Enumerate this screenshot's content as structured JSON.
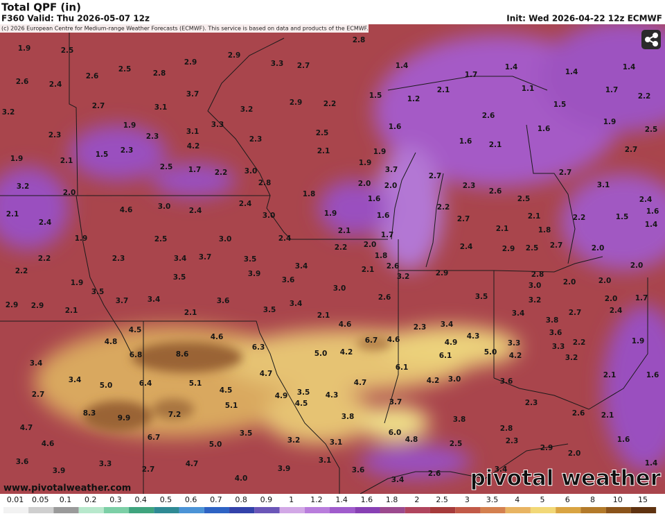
{
  "header": {
    "title": "Total QPF (in)",
    "valid": "F360 Valid: Thu 2026-05-07 12z",
    "init": "Init: Wed 2026-04-22 12z ECMWF",
    "copyright": "(c) 2026 European Centre for Medium-range Weather Forecasts (ECMWF). This service is based on data and products of the ECMWF."
  },
  "map": {
    "labels": [
      "1.9",
      "2.5",
      "2.5",
      "2.8",
      "2.9",
      "2.9",
      "3.3",
      "2.7",
      "2.8",
      "1.4",
      "1.7",
      "1.4",
      "1.4",
      "1.4",
      "2.6",
      "2.4",
      "2.6",
      "3.7",
      "2.1",
      "1.1",
      "1.7",
      "2.2",
      "3.2",
      "2.7",
      "3.1",
      "3.2",
      "2.9",
      "2.2",
      "1.5",
      "1.2",
      "1.5",
      "2.6",
      "1.9",
      "1.9",
      "3.1",
      "3.3",
      "1.6",
      "1.6",
      "2.5",
      "2.3",
      "2.3",
      "2.5",
      "2.3",
      "1.6",
      "2.1",
      "4.2",
      "2.1",
      "1.9",
      "2.7",
      "1.9",
      "2.1",
      "1.5",
      "2.3",
      "2.5",
      "1.7",
      "2.2",
      "3.0",
      "1.9",
      "3.7",
      "2.7",
      "2.7",
      "3.2",
      "2.0",
      "2.8",
      "2.0",
      "2.0",
      "2.3",
      "2.6",
      "3.1",
      "1.8",
      "1.6",
      "2.5",
      "2.4",
      "2.1",
      "4.6",
      "3.0",
      "2.4",
      "2.4",
      "2.2",
      "1.6",
      "3.0",
      "1.9",
      "1.6",
      "2.7",
      "2.1",
      "2.2",
      "1.5",
      "1.4",
      "2.4",
      "1.8",
      "2.1",
      "2.1",
      "1.9",
      "2.5",
      "3.0",
      "2.4",
      "1.7",
      "2.0",
      "2.2",
      "2.4",
      "2.9",
      "2.5",
      "2.7",
      "2.0",
      "2.2",
      "2.3",
      "3.4",
      "3.7",
      "3.5",
      "1.8",
      "3.4",
      "2.6",
      "2.0",
      "2.2",
      "2.1",
      "3.9",
      "3.5",
      "3.2",
      "2.9",
      "2.8",
      "2.0",
      "2.0",
      "1.9",
      "3.6",
      "3.0",
      "3.5",
      "3.0",
      "1.7",
      "3.7",
      "3.4",
      "3.6",
      "2.6",
      "3.5",
      "3.2",
      "2.0",
      "2.9",
      "2.9",
      "3.4",
      "2.1",
      "3.5",
      "2.1",
      "3.4",
      "2.7",
      "2.4",
      "2.1",
      "3.8",
      "4.6",
      "2.3",
      "3.4",
      "4.5",
      "3.6",
      "4.6",
      "4.3",
      "1.9",
      "4.8",
      "6.7",
      "4.6",
      "4.9",
      "3.3",
      "3.3",
      "2.2",
      "6.3",
      "3.4",
      "6.8",
      "8.6",
      "5.0",
      "4.2",
      "6.1",
      "5.0",
      "4.2",
      "3.2",
      "6.1",
      "4.7",
      "2.1",
      "1.6",
      "3.4",
      "5.0",
      "6.4",
      "5.1",
      "4.7",
      "4.2",
      "3.0",
      "3.6",
      "4.5",
      "3.5",
      "4.9",
      "4.3",
      "2.7",
      "3.7",
      "4.5",
      "2.3",
      "5.1",
      "8.3",
      "7.2",
      "3.8",
      "3.8",
      "2.6",
      "2.1",
      "9.9",
      "4.7",
      "2.8",
      "3.5",
      "6.0",
      "4.8",
      "6.7",
      "3.2",
      "3.1",
      "2.3",
      "1.6",
      "4.6",
      "5.0",
      "2.5",
      "2.9",
      "2.0",
      "3.6",
      "3.3",
      "4.7",
      "3.1",
      "1.4",
      "3.9",
      "2.7",
      "3.9",
      "3.6",
      "2.6",
      "3.4",
      "4.0",
      "3.4"
    ]
  },
  "footer": {
    "website": "www.pivotalweather.com",
    "logo": "pivotal weather"
  },
  "colorbar": {
    "ticks": [
      0.01,
      0.05,
      0.1,
      0.2,
      0.3,
      0.4,
      0.5,
      0.6,
      0.7,
      0.8,
      0.9,
      1,
      1.2,
      1.4,
      1.6,
      1.8,
      2,
      2.5,
      3,
      3.5,
      4,
      5,
      6,
      8,
      10,
      15
    ],
    "colors": [
      "#f2f2f2",
      "#cfcfcf",
      "#9a9a9a",
      "#b8e8cc",
      "#7ccfa6",
      "#3fa47e",
      "#2f8a94",
      "#4b93d6",
      "#2e63c4",
      "#3342aa",
      "#6b56b8",
      "#d2a8e6",
      "#b97ddc",
      "#a05ccc",
      "#8840b4",
      "#9c4a8e",
      "#b0455e",
      "#a63b3b",
      "#c25a48",
      "#d4804f",
      "#e8b462",
      "#f2d877",
      "#d9a442",
      "#b37a2a",
      "#8a531a",
      "#5f3210"
    ]
  }
}
